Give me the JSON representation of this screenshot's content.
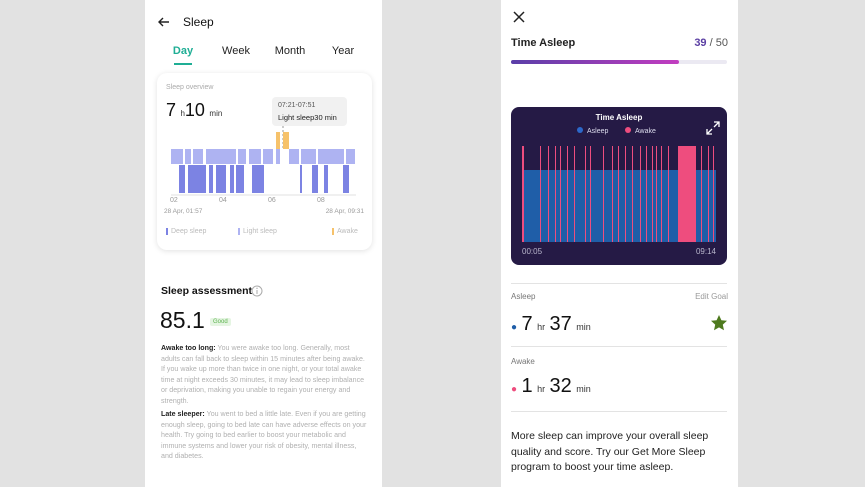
{
  "left": {
    "header": {
      "title": "Sleep"
    },
    "tabs": [
      "Day",
      "Week",
      "Month",
      "Year"
    ],
    "overview": {
      "title": "Sleep overview",
      "hours": "7",
      "hours_unit": "h",
      "minutes": "10",
      "minutes_unit": "min",
      "tooltip": {
        "time": "07:21-07:51",
        "label": "Light sleep",
        "duration": "30 min"
      },
      "x_labels": [
        "02",
        "04",
        "06",
        "08"
      ],
      "start": "28 Apr, 01:57",
      "end": "28 Apr, 09:31",
      "legend": [
        "Deep sleep",
        "Light sleep",
        "Awake"
      ]
    },
    "assessment": {
      "title": "Sleep assessment",
      "score": "85.1",
      "badge": "Good",
      "notes": [
        {
          "heading": "Awake too long:",
          "text": "You were awake too long. Generally, most adults can fall back to sleep within 15 minutes after being awake. If you wake up more than twice in one night, or your total awake time at night exceeds 30 minutes, it may lead to sleep imbalance or deprivation, making you unable to regain your energy and strength."
        },
        {
          "heading": "Late sleeper:",
          "text": "You went to bed a little late. Even if you are getting enough sleep, going to bed late can have adverse effects on your health. Try going to bed earlier to boost your metabolic and immune systems and lower your risk of obesity, mental illness, and diabetes."
        }
      ]
    }
  },
  "right": {
    "title": "Time Asleep",
    "score": 39,
    "separator": "/",
    "score_max": 50,
    "chart": {
      "title": "Time Asleep",
      "legend": [
        "Asleep",
        "Awake"
      ],
      "start": "00:05",
      "end": "09:14"
    },
    "asleep": {
      "label": "Asleep",
      "action": "Edit Goal",
      "hours": "7",
      "hours_unit": "hr",
      "minutes": "37",
      "minutes_unit": "min"
    },
    "awake": {
      "label": "Awake",
      "hours": "1",
      "hours_unit": "hr",
      "minutes": "32",
      "minutes_unit": "min"
    },
    "message": "More sleep can improve your overall sleep quality and score. Try our Get More Sleep program to boost your time asleep."
  }
}
